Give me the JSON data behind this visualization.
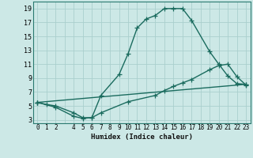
{
  "xlabel": "Humidex (Indice chaleur)",
  "ylabel": "",
  "background_color": "#cce8e6",
  "grid_color": "#aacfcd",
  "line_color": "#1a6b5e",
  "xlim": [
    -0.5,
    23.5
  ],
  "ylim": [
    2.5,
    20.0
  ],
  "xtick_labels": [
    "0",
    "1",
    "2",
    "",
    "4",
    "5",
    "6",
    "7",
    "8",
    "9",
    "10",
    "11",
    "12",
    "13",
    "14",
    "15",
    "16",
    "17",
    "18",
    "19",
    "20",
    "21",
    "22",
    "23"
  ],
  "xtick_vals": [
    0,
    1,
    2,
    3,
    4,
    5,
    6,
    7,
    8,
    9,
    10,
    11,
    12,
    13,
    14,
    15,
    16,
    17,
    18,
    19,
    20,
    21,
    22,
    23
  ],
  "ytick_vals": [
    3,
    5,
    7,
    9,
    11,
    13,
    15,
    17,
    19
  ],
  "line1_x": [
    0,
    1,
    2,
    4,
    5,
    6,
    7,
    9,
    10,
    11,
    12,
    13,
    14,
    15,
    16,
    17,
    19,
    20,
    21,
    22,
    23
  ],
  "line1_y": [
    5.5,
    5.2,
    5.0,
    4.0,
    3.3,
    3.3,
    6.5,
    9.5,
    12.5,
    16.2,
    17.5,
    18.0,
    19.0,
    19.0,
    19.0,
    17.3,
    12.8,
    11.0,
    9.3,
    8.2,
    8.1
  ],
  "line2_x": [
    0,
    2,
    4,
    5,
    6,
    7,
    10,
    13,
    14,
    15,
    16,
    17,
    19,
    20,
    21,
    22,
    23
  ],
  "line2_y": [
    5.5,
    4.8,
    3.5,
    3.2,
    3.3,
    4.0,
    5.6,
    6.5,
    7.2,
    7.8,
    8.3,
    8.8,
    10.2,
    10.8,
    11.0,
    9.2,
    8.0
  ],
  "line3_x": [
    0,
    23
  ],
  "line3_y": [
    5.5,
    8.1
  ],
  "marker": "+",
  "markersize": 4,
  "linewidth": 1.0
}
